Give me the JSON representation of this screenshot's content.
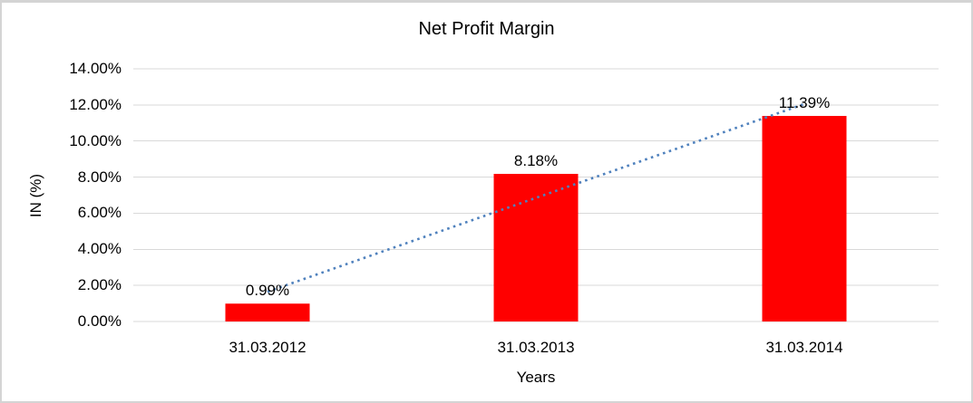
{
  "chart_data": {
    "type": "bar",
    "title": "Net Profit Margin",
    "categories": [
      "31.03.2012",
      "31.03.2013",
      "31.03.2014"
    ],
    "series": [
      {
        "name": "Net Profit Margin",
        "values": [
          0.99,
          8.18,
          11.39
        ]
      }
    ],
    "data_labels": [
      "0.99%",
      "8.18%",
      "11.39%"
    ],
    "xlabel": "Years",
    "ylabel": "IN (%)",
    "ylim": [
      0,
      14
    ],
    "ytick_step": 2,
    "ytick_labels": [
      "0.00%",
      "2.00%",
      "4.00%",
      "6.00%",
      "8.00%",
      "10.00%",
      "12.00%",
      "14.00%"
    ],
    "grid": true,
    "legend": "none",
    "bar_color": "#ff0000",
    "gridline_color": "#d9d9d9",
    "trendline": {
      "type": "linear",
      "style": "dotted",
      "color": "#4f81bd",
      "start_value": 1.65,
      "end_value": 12.05
    }
  }
}
